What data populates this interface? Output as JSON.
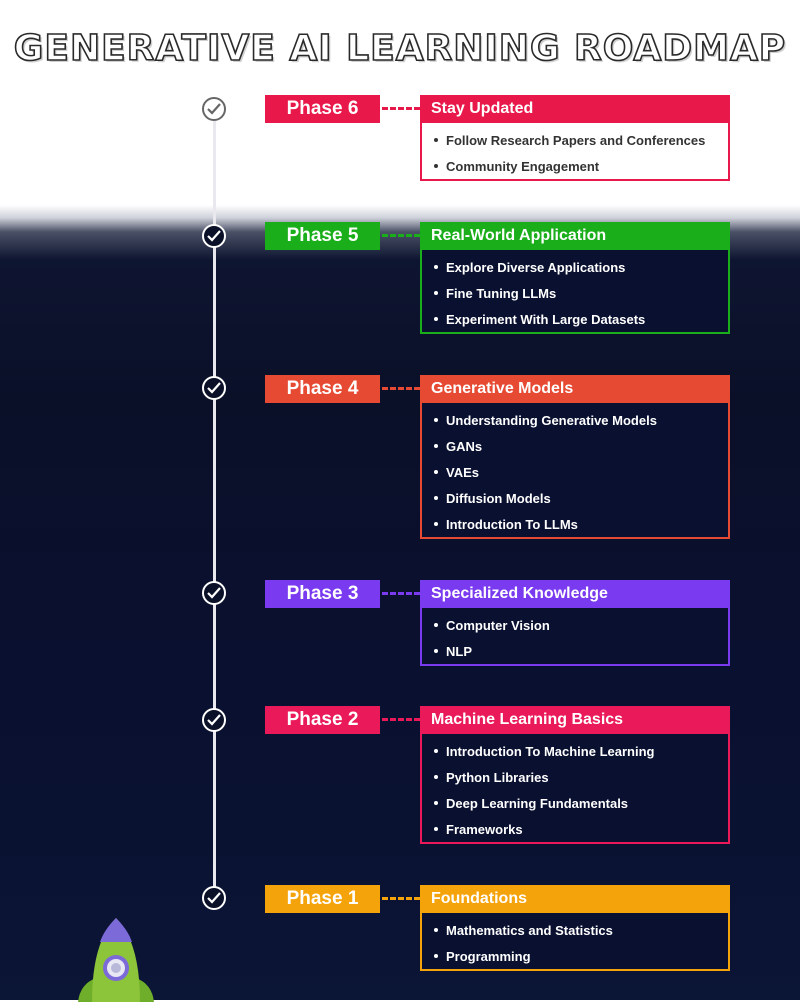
{
  "title": "GENERATIVE AI LEARNING ROADMAP",
  "colors": {
    "phase6": "#e8194a",
    "phase5": "#1aae1a",
    "phase4": "#e64a33",
    "phase3": "#7a3af0",
    "phase2": "#ea1a5a",
    "phase1": "#f5a30a"
  },
  "phases": [
    {
      "label": "Phase 6",
      "heading": "Stay Updated",
      "items": [
        "Follow Research Papers and Conferences",
        "Community Engagement"
      ]
    },
    {
      "label": "Phase 5",
      "heading": "Real-World Application",
      "items": [
        "Explore Diverse Applications",
        "Fine Tuning LLMs",
        "Experiment With Large Datasets"
      ]
    },
    {
      "label": "Phase 4",
      "heading": "Generative Models",
      "items": [
        "Understanding Generative Models",
        "GANs",
        "VAEs",
        "Diffusion Models",
        "Introduction To LLMs"
      ]
    },
    {
      "label": "Phase 3",
      "heading": "Specialized Knowledge",
      "items": [
        "Computer Vision",
        "NLP"
      ]
    },
    {
      "label": "Phase 2",
      "heading": "Machine Learning Basics",
      "items": [
        "Introduction To Machine Learning",
        "Python Libraries",
        "Deep Learning Fundamentals",
        "Frameworks"
      ]
    },
    {
      "label": "Phase 1",
      "heading": "Foundations",
      "items": [
        "Mathematics and Statistics",
        "Programming"
      ]
    }
  ],
  "icons": {
    "milestone": "check-circle-icon",
    "mascot": "rocket-icon"
  }
}
